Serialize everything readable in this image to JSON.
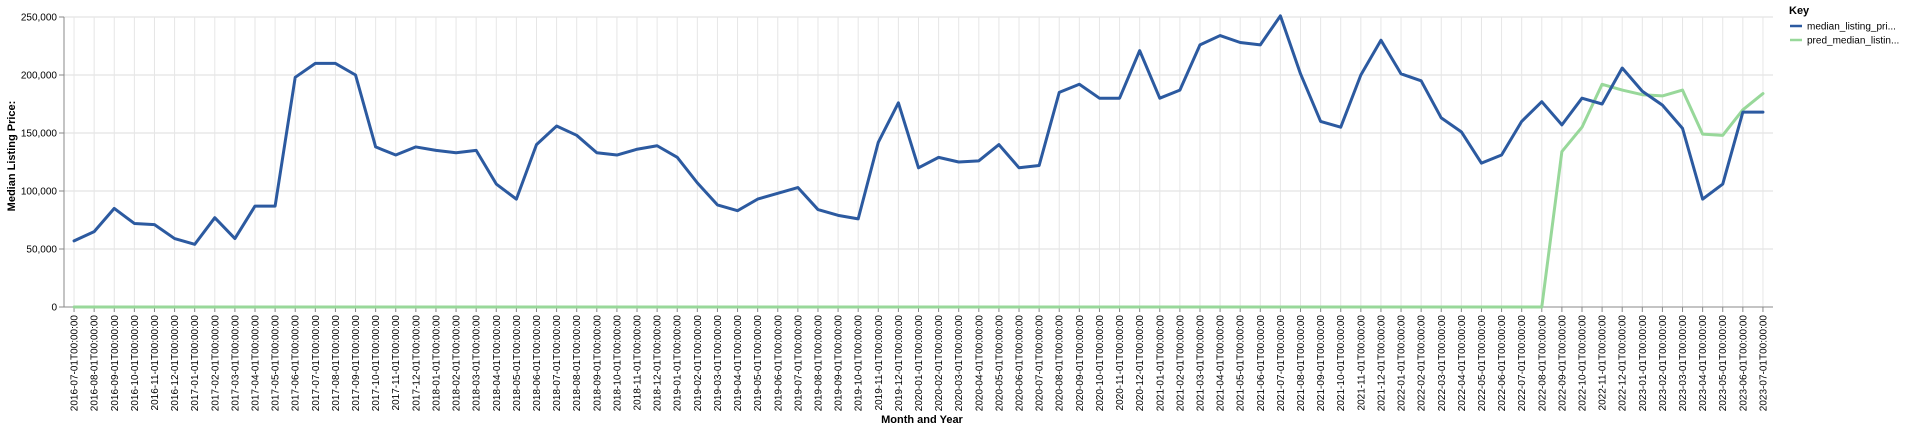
{
  "chart_data": {
    "type": "line",
    "xlabel": "Month and Year",
    "ylabel": "Median Listing Price:",
    "ylim": [
      0,
      250000
    ],
    "y_ticks": [
      0,
      50000,
      100000,
      150000,
      200000,
      250000
    ],
    "y_tick_labels": [
      "0",
      "50,000",
      "100,000",
      "150,000",
      "200,000",
      "250,000"
    ],
    "grid": true,
    "legend": {
      "title": "Key",
      "placement": "top-right"
    },
    "categories": [
      "2016-07-01T00:00:00",
      "2016-08-01T00:00:00",
      "2016-09-01T00:00:00",
      "2016-10-01T00:00:00",
      "2016-11-01T00:00:00",
      "2016-12-01T00:00:00",
      "2017-01-01T00:00:00",
      "2017-02-01T00:00:00",
      "2017-03-01T00:00:00",
      "2017-04-01T00:00:00",
      "2017-05-01T00:00:00",
      "2017-06-01T00:00:00",
      "2017-07-01T00:00:00",
      "2017-08-01T00:00:00",
      "2017-09-01T00:00:00",
      "2017-10-01T00:00:00",
      "2017-11-01T00:00:00",
      "2017-12-01T00:00:00",
      "2018-01-01T00:00:00",
      "2018-02-01T00:00:00",
      "2018-03-01T00:00:00",
      "2018-04-01T00:00:00",
      "2018-05-01T00:00:00",
      "2018-06-01T00:00:00",
      "2018-07-01T00:00:00",
      "2018-08-01T00:00:00",
      "2018-09-01T00:00:00",
      "2018-10-01T00:00:00",
      "2018-11-01T00:00:00",
      "2018-12-01T00:00:00",
      "2019-01-01T00:00:00",
      "2019-02-01T00:00:00",
      "2019-03-01T00:00:00",
      "2019-04-01T00:00:00",
      "2019-05-01T00:00:00",
      "2019-06-01T00:00:00",
      "2019-07-01T00:00:00",
      "2019-08-01T00:00:00",
      "2019-09-01T00:00:00",
      "2019-10-01T00:00:00",
      "2019-11-01T00:00:00",
      "2019-12-01T00:00:00",
      "2020-01-01T00:00:00",
      "2020-02-01T00:00:00",
      "2020-03-01T00:00:00",
      "2020-04-01T00:00:00",
      "2020-05-01T00:00:00",
      "2020-06-01T00:00:00",
      "2020-07-01T00:00:00",
      "2020-08-01T00:00:00",
      "2020-09-01T00:00:00",
      "2020-10-01T00:00:00",
      "2020-11-01T00:00:00",
      "2020-12-01T00:00:00",
      "2021-01-01T00:00:00",
      "2021-02-01T00:00:00",
      "2021-03-01T00:00:00",
      "2021-04-01T00:00:00",
      "2021-05-01T00:00:00",
      "2021-06-01T00:00:00",
      "2021-07-01T00:00:00",
      "2021-08-01T00:00:00",
      "2021-09-01T00:00:00",
      "2021-10-01T00:00:00",
      "2021-11-01T00:00:00",
      "2021-12-01T00:00:00",
      "2022-01-01T00:00:00",
      "2022-02-01T00:00:00",
      "2022-03-01T00:00:00",
      "2022-04-01T00:00:00",
      "2022-05-01T00:00:00",
      "2022-06-01T00:00:00",
      "2022-07-01T00:00:00",
      "2022-08-01T00:00:00",
      "2022-09-01T00:00:00",
      "2022-10-01T00:00:00",
      "2022-11-01T00:00:00",
      "2022-12-01T00:00:00",
      "2023-01-01T00:00:00",
      "2023-02-01T00:00:00",
      "2023-03-01T00:00:00",
      "2023-04-01T00:00:00",
      "2023-05-01T00:00:00",
      "2023-06-01T00:00:00",
      "2023-07-01T00:00:00"
    ],
    "series": [
      {
        "name": "median_listing_pri...",
        "color": "#2c5aa0",
        "values": [
          57000,
          65000,
          85000,
          72000,
          71000,
          59000,
          54000,
          77000,
          59000,
          87000,
          87000,
          198000,
          210000,
          210000,
          200000,
          138000,
          131000,
          138000,
          135000,
          133000,
          135000,
          106000,
          93000,
          140000,
          156000,
          148000,
          133000,
          131000,
          136000,
          139000,
          129000,
          107000,
          88000,
          83000,
          93000,
          98000,
          103000,
          84000,
          79000,
          76000,
          142000,
          176000,
          120000,
          129000,
          125000,
          126000,
          140000,
          120000,
          122000,
          185000,
          192000,
          180000,
          180000,
          221000,
          180000,
          187000,
          226000,
          234000,
          228000,
          226000,
          251000,
          201000,
          160000,
          155000,
          200000,
          230000,
          201000,
          195000,
          163000,
          151000,
          124000,
          131000,
          160000,
          177000,
          157000,
          180000,
          175000,
          206000,
          186000,
          174000,
          154000,
          93000,
          106000,
          168000,
          168000
        ]
      },
      {
        "name": "pred_median_listin...",
        "color": "#98d89a",
        "values": [
          0,
          0,
          0,
          0,
          0,
          0,
          0,
          0,
          0,
          0,
          0,
          0,
          0,
          0,
          0,
          0,
          0,
          0,
          0,
          0,
          0,
          0,
          0,
          0,
          0,
          0,
          0,
          0,
          0,
          0,
          0,
          0,
          0,
          0,
          0,
          0,
          0,
          0,
          0,
          0,
          0,
          0,
          0,
          0,
          0,
          0,
          0,
          0,
          0,
          0,
          0,
          0,
          0,
          0,
          0,
          0,
          0,
          0,
          0,
          0,
          0,
          0,
          0,
          0,
          0,
          0,
          0,
          0,
          0,
          0,
          0,
          0,
          0,
          0,
          134000,
          155000,
          192000,
          187000,
          183000,
          182000,
          187000,
          149000,
          148000,
          170000,
          184000
        ]
      }
    ]
  }
}
